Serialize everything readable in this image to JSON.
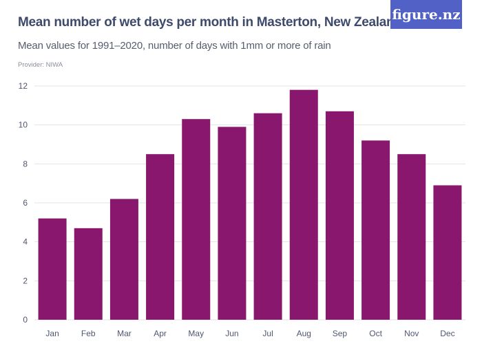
{
  "title": "Mean number of wet days per month in Masterton, New Zealand",
  "subtitle": "Mean values for 1991–2020, number of days with 1mm or more of rain",
  "provider": "Provider: NIWA",
  "logo": "figure.nz",
  "colors": {
    "bar": "#89176e",
    "logo_bg": "#5161c6",
    "grid": "#e3e3e3"
  },
  "chart_data": {
    "type": "bar",
    "title": "Mean number of wet days per month in Masterton, New Zealand",
    "subtitle": "Mean values for 1991–2020, number of days with 1mm or more of rain",
    "categories": [
      "Jan",
      "Feb",
      "Mar",
      "Apr",
      "May",
      "Jun",
      "Jul",
      "Aug",
      "Sep",
      "Oct",
      "Nov",
      "Dec"
    ],
    "values": [
      5.2,
      4.7,
      6.2,
      8.5,
      10.3,
      9.9,
      10.6,
      11.8,
      10.7,
      9.2,
      8.5,
      6.9
    ],
    "ylim": [
      0,
      12
    ],
    "yticks": [
      0,
      2,
      4,
      6,
      8,
      10,
      12
    ],
    "xlabel": "",
    "ylabel": "",
    "grid": true,
    "legend": "none"
  }
}
